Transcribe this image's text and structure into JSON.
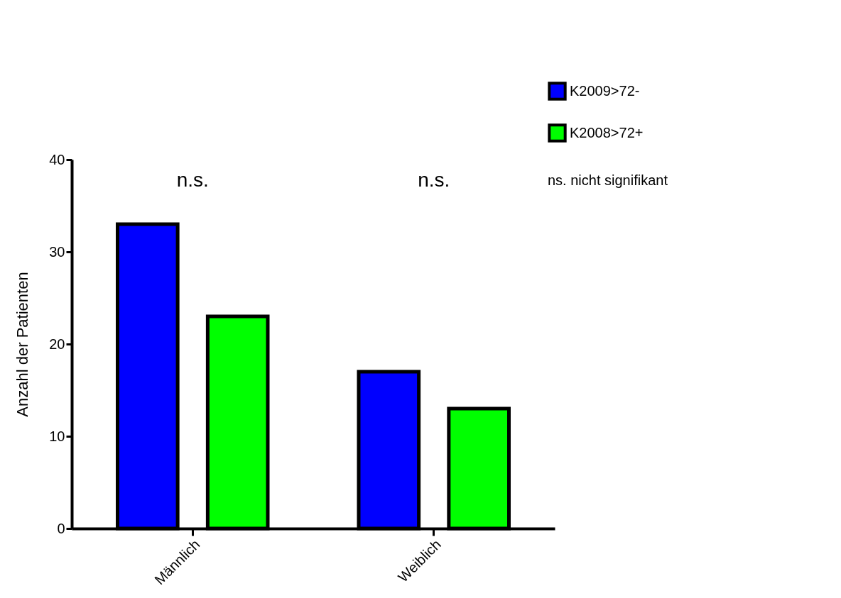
{
  "chart_data": {
    "type": "bar",
    "ylabel": "Anzahl der Patienten",
    "categories": [
      "Männlich",
      "Weiblich"
    ],
    "series": [
      {
        "name": "K2009>72-",
        "color": "#0000ff",
        "values": [
          33,
          17
        ]
      },
      {
        "name": "K2008>72+",
        "color": "#00ff00",
        "values": [
          23,
          13
        ]
      }
    ],
    "ylim": [
      0,
      40
    ],
    "yticks": [
      0,
      10,
      20,
      30,
      40
    ],
    "grid": false,
    "legend": "top right",
    "annotations": [
      "n.s.",
      "n.s.",
      "ns. nicht signifikant"
    ]
  }
}
